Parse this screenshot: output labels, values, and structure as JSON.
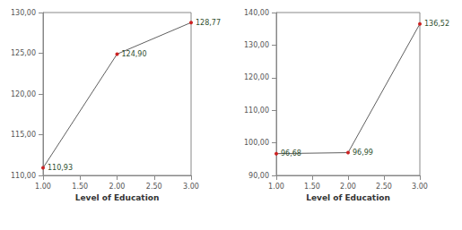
{
  "chart_data": [
    {
      "type": "line",
      "xlabel": "Level of Education",
      "x": [
        1,
        2,
        3
      ],
      "values": [
        110.93,
        124.9,
        128.77
      ],
      "value_labels": [
        "110,93",
        "124,90",
        "128,77"
      ],
      "color": "#606060",
      "marker": "circle",
      "data_labels": true,
      "grid": false,
      "xlim": [
        1,
        3
      ],
      "xticks": [
        {
          "value": 1,
          "label": "1.00"
        },
        {
          "value": 1.5,
          "label": "1.50"
        },
        {
          "value": 2,
          "label": "2.00"
        },
        {
          "value": 2.5,
          "label": "2.50"
        },
        {
          "value": 3,
          "label": "3.00"
        }
      ],
      "ylim": [
        110,
        130
      ],
      "yticks": [
        {
          "value": 110,
          "label": "110,00"
        },
        {
          "value": 115,
          "label": "115,00"
        },
        {
          "value": 120,
          "label": "120,00"
        },
        {
          "value": 125,
          "label": "125,00"
        },
        {
          "value": 130,
          "label": "130,00"
        }
      ]
    },
    {
      "type": "line",
      "xlabel": "Level of Education",
      "x": [
        1,
        2,
        3
      ],
      "values": [
        96.68,
        96.99,
        136.52
      ],
      "value_labels": [
        "96,68",
        "96,99",
        "136,52"
      ],
      "color": "#606060",
      "marker": "circle",
      "data_labels": true,
      "grid": false,
      "xlim": [
        1,
        3
      ],
      "xticks": [
        {
          "value": 1,
          "label": "1.00"
        },
        {
          "value": 1.5,
          "label": "1.50"
        },
        {
          "value": 2,
          "label": "2.00"
        },
        {
          "value": 2.5,
          "label": "2.50"
        },
        {
          "value": 3,
          "label": "3.00"
        }
      ],
      "ylim": [
        90,
        140
      ],
      "yticks": [
        {
          "value": 90,
          "label": "90,00"
        },
        {
          "value": 100,
          "label": "100,00"
        },
        {
          "value": 110,
          "label": "110,00"
        },
        {
          "value": 120,
          "label": "120,00"
        },
        {
          "value": 130,
          "label": "130,00"
        },
        {
          "value": 140,
          "label": "140,00"
        }
      ]
    }
  ]
}
